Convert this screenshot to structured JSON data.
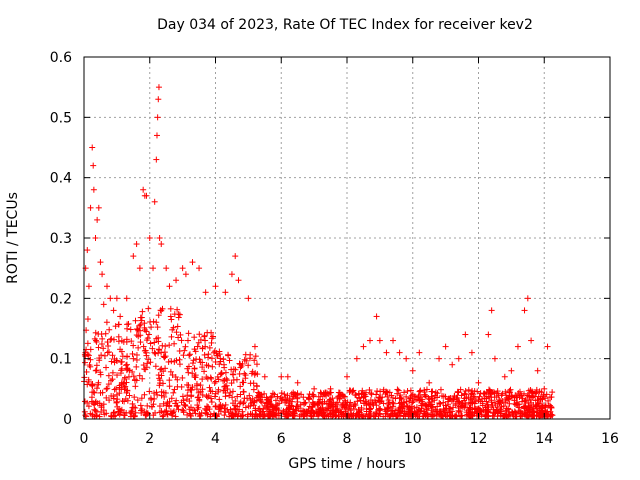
{
  "chart_data": {
    "type": "scatter",
    "title": "Day 034 of 2023, Rate Of TEC Index for receiver kev2",
    "xlabel": "GPS time / hours",
    "ylabel": "ROTI / TECUs",
    "xlim": [
      0,
      16
    ],
    "ylim": [
      0,
      0.6
    ],
    "xticks": [
      0,
      2,
      4,
      6,
      8,
      10,
      12,
      14,
      16
    ],
    "yticks": [
      0,
      0.1,
      0.2,
      0.3,
      0.4,
      0.5,
      0.6
    ],
    "ytick_labels": [
      "0",
      "0.1",
      "0.2",
      "0.3",
      "0.4",
      "0.5",
      "0.6"
    ],
    "grid": true,
    "marker": "plus",
    "color": "#ff0000",
    "series": [
      {
        "name": "ROTI",
        "points": [
          [
            0.05,
            0.25
          ],
          [
            0.1,
            0.28
          ],
          [
            0.15,
            0.22
          ],
          [
            0.2,
            0.35
          ],
          [
            0.25,
            0.45
          ],
          [
            0.28,
            0.42
          ],
          [
            0.3,
            0.38
          ],
          [
            0.35,
            0.3
          ],
          [
            0.4,
            0.33
          ],
          [
            0.45,
            0.35
          ],
          [
            0.5,
            0.26
          ],
          [
            0.55,
            0.24
          ],
          [
            0.6,
            0.19
          ],
          [
            0.7,
            0.22
          ],
          [
            0.8,
            0.2
          ],
          [
            0.9,
            0.18
          ],
          [
            1.0,
            0.2
          ],
          [
            1.1,
            0.17
          ],
          [
            1.3,
            0.2
          ],
          [
            1.5,
            0.27
          ],
          [
            1.6,
            0.29
          ],
          [
            1.7,
            0.25
          ],
          [
            1.8,
            0.38
          ],
          [
            1.85,
            0.37
          ],
          [
            1.9,
            0.37
          ],
          [
            2.0,
            0.3
          ],
          [
            2.1,
            0.25
          ],
          [
            2.15,
            0.36
          ],
          [
            2.2,
            0.43
          ],
          [
            2.22,
            0.47
          ],
          [
            2.24,
            0.5
          ],
          [
            2.26,
            0.53
          ],
          [
            2.28,
            0.55
          ],
          [
            2.3,
            0.3
          ],
          [
            2.35,
            0.29
          ],
          [
            2.5,
            0.25
          ],
          [
            2.6,
            0.22
          ],
          [
            2.8,
            0.23
          ],
          [
            3.0,
            0.25
          ],
          [
            3.1,
            0.24
          ],
          [
            3.3,
            0.26
          ],
          [
            3.5,
            0.25
          ],
          [
            3.7,
            0.21
          ],
          [
            4.0,
            0.22
          ],
          [
            4.3,
            0.21
          ],
          [
            4.5,
            0.24
          ],
          [
            4.6,
            0.27
          ],
          [
            4.7,
            0.23
          ],
          [
            5.0,
            0.2
          ],
          [
            5.2,
            0.12
          ],
          [
            5.5,
            0.07
          ],
          [
            6.0,
            0.07
          ],
          [
            6.2,
            0.07
          ],
          [
            6.5,
            0.06
          ],
          [
            7.0,
            0.05
          ],
          [
            7.5,
            0.05
          ],
          [
            8.0,
            0.07
          ],
          [
            8.3,
            0.1
          ],
          [
            8.5,
            0.12
          ],
          [
            8.7,
            0.13
          ],
          [
            8.9,
            0.17
          ],
          [
            9.0,
            0.13
          ],
          [
            9.2,
            0.11
          ],
          [
            9.4,
            0.13
          ],
          [
            9.6,
            0.11
          ],
          [
            9.8,
            0.1
          ],
          [
            10.0,
            0.08
          ],
          [
            10.2,
            0.11
          ],
          [
            10.5,
            0.06
          ],
          [
            10.8,
            0.1
          ],
          [
            11.0,
            0.12
          ],
          [
            11.2,
            0.09
          ],
          [
            11.4,
            0.1
          ],
          [
            11.6,
            0.14
          ],
          [
            11.8,
            0.11
          ],
          [
            12.0,
            0.06
          ],
          [
            12.3,
            0.14
          ],
          [
            12.4,
            0.18
          ],
          [
            12.5,
            0.1
          ],
          [
            12.8,
            0.07
          ],
          [
            13.0,
            0.08
          ],
          [
            13.2,
            0.12
          ],
          [
            13.4,
            0.18
          ],
          [
            13.5,
            0.2
          ],
          [
            13.6,
            0.13
          ],
          [
            13.8,
            0.08
          ],
          [
            14.0,
            0.05
          ],
          [
            14.1,
            0.12
          ],
          [
            14.2,
            0.02
          ]
        ]
      }
    ]
  }
}
